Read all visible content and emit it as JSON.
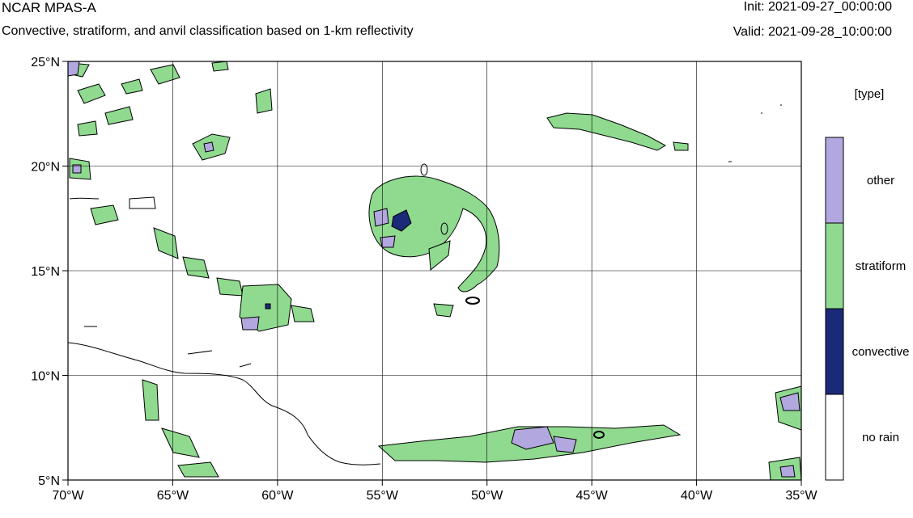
{
  "header": {
    "title": "NCAR MPAS-A",
    "subtitle": "Convective, stratiform, and anvil classification based on 1-km reflectivity",
    "init": "Init: 2021-09-27_00:00:00",
    "valid": "Valid: 2021-09-28_10:00:00"
  },
  "map": {
    "lon_range": [
      -70,
      -35
    ],
    "lat_range": [
      5,
      25
    ],
    "lon_ticks": [
      -70,
      -65,
      -60,
      -55,
      -50,
      -45,
      -40,
      -35
    ],
    "lon_tick_labels": [
      "70°W",
      "65°W",
      "60°W",
      "55°W",
      "50°W",
      "45°W",
      "40°W",
      "35°W"
    ],
    "lat_ticks": [
      5,
      10,
      15,
      20,
      25
    ],
    "lat_tick_labels": [
      "5°N",
      "10°N",
      "15°N",
      "20°N",
      "25°N"
    ],
    "grid": true
  },
  "legend": {
    "title": "[type]",
    "placement": "right",
    "classes": [
      {
        "label": "other",
        "color": "#b3a7df"
      },
      {
        "label": "stratiform",
        "color": "#8fda8f"
      },
      {
        "label": "convective",
        "color": "#1b2a78"
      },
      {
        "label": "no rain",
        "color": "#ffffff"
      }
    ]
  },
  "colors": {
    "other": "#b3a7df",
    "stratiform": "#8fda8f",
    "convective": "#1b2a78",
    "coastline": "#000000",
    "grid": "#000000"
  }
}
